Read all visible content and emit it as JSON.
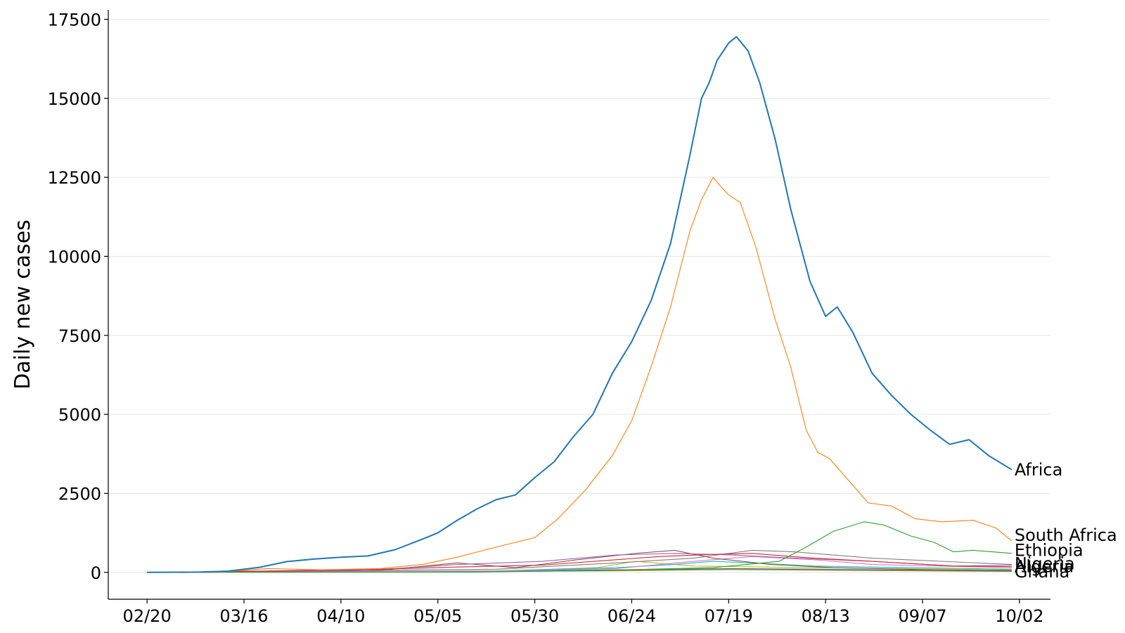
{
  "chart_data": {
    "type": "line",
    "title": "",
    "xlabel": "",
    "ylabel": "Daily new cases",
    "ylim": [
      -850,
      17800
    ],
    "yticks": [
      0,
      2500,
      5000,
      7500,
      10000,
      12500,
      15000,
      17500
    ],
    "ytick_labels": [
      "0",
      "2500",
      "5000",
      "7500",
      "10000",
      "12500",
      "15000",
      "17500"
    ],
    "xlim": [
      "2020-02-10",
      "2020-10-10"
    ],
    "xticks": [
      "2020-02-20",
      "2020-03-16",
      "2020-04-10",
      "2020-05-05",
      "2020-05-30",
      "2020-06-24",
      "2020-07-19",
      "2020-08-13",
      "2020-09-07",
      "2020-10-02"
    ],
    "xtick_labels": [
      "02/20",
      "03/16",
      "04/10",
      "05/05",
      "05/30",
      "06/24",
      "07/19",
      "08/13",
      "09/07",
      "10/02"
    ],
    "grid": "horizontal",
    "legend": "none",
    "series": [
      {
        "name": "Africa",
        "color": "#1f77b4",
        "points": [
          [
            "2020-02-20",
            0
          ],
          [
            "2020-03-05",
            10
          ],
          [
            "2020-03-12",
            40
          ],
          [
            "2020-03-20",
            160
          ],
          [
            "2020-03-27",
            340
          ],
          [
            "2020-04-03",
            420
          ],
          [
            "2020-04-10",
            480
          ],
          [
            "2020-04-17",
            520
          ],
          [
            "2020-04-24",
            720
          ],
          [
            "2020-05-01",
            1050
          ],
          [
            "2020-05-05",
            1250
          ],
          [
            "2020-05-10",
            1650
          ],
          [
            "2020-05-15",
            2000
          ],
          [
            "2020-05-20",
            2300
          ],
          [
            "2020-05-25",
            2450
          ],
          [
            "2020-05-30",
            3000
          ],
          [
            "2020-06-04",
            3500
          ],
          [
            "2020-06-09",
            4300
          ],
          [
            "2020-06-14",
            5000
          ],
          [
            "2020-06-19",
            6300
          ],
          [
            "2020-06-24",
            7300
          ],
          [
            "2020-06-29",
            8600
          ],
          [
            "2020-07-04",
            10400
          ],
          [
            "2020-07-09",
            13200
          ],
          [
            "2020-07-12",
            15000
          ],
          [
            "2020-07-14",
            15500
          ],
          [
            "2020-07-16",
            16200
          ],
          [
            "2020-07-19",
            16750
          ],
          [
            "2020-07-21",
            16950
          ],
          [
            "2020-07-24",
            16500
          ],
          [
            "2020-07-27",
            15500
          ],
          [
            "2020-07-31",
            13700
          ],
          [
            "2020-08-04",
            11500
          ],
          [
            "2020-08-09",
            9200
          ],
          [
            "2020-08-13",
            8100
          ],
          [
            "2020-08-16",
            8400
          ],
          [
            "2020-08-20",
            7600
          ],
          [
            "2020-08-25",
            6300
          ],
          [
            "2020-08-30",
            5600
          ],
          [
            "2020-09-04",
            5000
          ],
          [
            "2020-09-09",
            4500
          ],
          [
            "2020-09-14",
            4050
          ],
          [
            "2020-09-19",
            4200
          ],
          [
            "2020-09-24",
            3700
          ],
          [
            "2020-09-30",
            3250
          ]
        ]
      },
      {
        "name": "South Africa",
        "color": "#ff7f0e",
        "points": [
          [
            "2020-02-20",
            0
          ],
          [
            "2020-03-10",
            10
          ],
          [
            "2020-03-22",
            120
          ],
          [
            "2020-04-05",
            80
          ],
          [
            "2020-04-20",
            120
          ],
          [
            "2020-05-01",
            250
          ],
          [
            "2020-05-10",
            480
          ],
          [
            "2020-05-20",
            800
          ],
          [
            "2020-05-30",
            1100
          ],
          [
            "2020-06-05",
            1700
          ],
          [
            "2020-06-12",
            2600
          ],
          [
            "2020-06-19",
            3700
          ],
          [
            "2020-06-24",
            4800
          ],
          [
            "2020-06-29",
            6500
          ],
          [
            "2020-07-04",
            8400
          ],
          [
            "2020-07-09",
            10800
          ],
          [
            "2020-07-12",
            11800
          ],
          [
            "2020-07-15",
            12500
          ],
          [
            "2020-07-17",
            12200
          ],
          [
            "2020-07-19",
            11950
          ],
          [
            "2020-07-22",
            11700
          ],
          [
            "2020-07-26",
            10300
          ],
          [
            "2020-07-31",
            8000
          ],
          [
            "2020-08-04",
            6500
          ],
          [
            "2020-08-08",
            4500
          ],
          [
            "2020-08-11",
            3800
          ],
          [
            "2020-08-14",
            3600
          ],
          [
            "2020-08-19",
            2900
          ],
          [
            "2020-08-24",
            2200
          ],
          [
            "2020-08-30",
            2100
          ],
          [
            "2020-09-05",
            1700
          ],
          [
            "2020-09-12",
            1600
          ],
          [
            "2020-09-20",
            1650
          ],
          [
            "2020-09-26",
            1400
          ],
          [
            "2020-09-30",
            1000
          ]
        ]
      },
      {
        "name": "Ethiopia",
        "color": "#2ca02c",
        "points": [
          [
            "2020-02-20",
            0
          ],
          [
            "2020-05-15",
            10
          ],
          [
            "2020-06-15",
            60
          ],
          [
            "2020-07-15",
            150
          ],
          [
            "2020-08-01",
            350
          ],
          [
            "2020-08-08",
            800
          ],
          [
            "2020-08-15",
            1300
          ],
          [
            "2020-08-23",
            1600
          ],
          [
            "2020-08-28",
            1500
          ],
          [
            "2020-09-04",
            1150
          ],
          [
            "2020-09-10",
            950
          ],
          [
            "2020-09-15",
            650
          ],
          [
            "2020-09-20",
            700
          ],
          [
            "2020-09-25",
            650
          ],
          [
            "2020-09-30",
            600
          ]
        ]
      },
      {
        "name": "Algeria",
        "color": "#d62728",
        "points": [
          [
            "2020-02-20",
            0
          ],
          [
            "2020-03-25",
            50
          ],
          [
            "2020-04-20",
            100
          ],
          [
            "2020-05-10",
            170
          ],
          [
            "2020-06-01",
            230
          ],
          [
            "2020-06-20",
            400
          ],
          [
            "2020-07-01",
            500
          ],
          [
            "2020-07-15",
            570
          ],
          [
            "2020-07-25",
            600
          ],
          [
            "2020-08-10",
            450
          ],
          [
            "2020-08-25",
            350
          ],
          [
            "2020-09-15",
            200
          ],
          [
            "2020-09-30",
            180
          ]
        ]
      },
      {
        "name": "Nigeria",
        "color": "#9467bd",
        "points": [
          [
            "2020-02-20",
            0
          ],
          [
            "2020-04-15",
            50
          ],
          [
            "2020-05-10",
            250
          ],
          [
            "2020-06-01",
            350
          ],
          [
            "2020-06-20",
            550
          ],
          [
            "2020-07-05",
            600
          ],
          [
            "2020-07-20",
            550
          ],
          [
            "2020-08-05",
            450
          ],
          [
            "2020-08-25",
            350
          ],
          [
            "2020-09-15",
            200
          ],
          [
            "2020-09-30",
            230
          ]
        ]
      },
      {
        "name": "Ghana",
        "color": "#8c564b",
        "points": [
          [
            "2020-02-20",
            0
          ],
          [
            "2020-04-20",
            60
          ],
          [
            "2020-05-10",
            300
          ],
          [
            "2020-05-25",
            150
          ],
          [
            "2020-06-10",
            400
          ],
          [
            "2020-06-25",
            600
          ],
          [
            "2020-07-05",
            700
          ],
          [
            "2020-07-15",
            450
          ],
          [
            "2020-07-30",
            250
          ],
          [
            "2020-08-15",
            150
          ],
          [
            "2020-09-10",
            80
          ],
          [
            "2020-09-30",
            60
          ]
        ]
      },
      {
        "name": "",
        "color": "#7f7f7f",
        "points": [
          [
            "2020-02-20",
            0
          ],
          [
            "2020-05-20",
            100
          ],
          [
            "2020-06-20",
            300
          ],
          [
            "2020-07-10",
            450
          ],
          [
            "2020-07-25",
            700
          ],
          [
            "2020-08-05",
            650
          ],
          [
            "2020-08-25",
            450
          ],
          [
            "2020-09-30",
            250
          ]
        ]
      },
      {
        "name": "",
        "color": "#e377c2",
        "points": [
          [
            "2020-02-20",
            0
          ],
          [
            "2020-05-20",
            40
          ],
          [
            "2020-06-20",
            120
          ],
          [
            "2020-07-10",
            350
          ],
          [
            "2020-07-25",
            500
          ],
          [
            "2020-08-10",
            400
          ],
          [
            "2020-08-25",
            250
          ],
          [
            "2020-09-30",
            150
          ]
        ]
      },
      {
        "name": "",
        "color": "#17becf",
        "points": [
          [
            "2020-02-20",
            0
          ],
          [
            "2020-05-20",
            50
          ],
          [
            "2020-06-20",
            150
          ],
          [
            "2020-07-05",
            250
          ],
          [
            "2020-07-15",
            350
          ],
          [
            "2020-07-25",
            300
          ],
          [
            "2020-08-10",
            200
          ],
          [
            "2020-09-30",
            100
          ]
        ]
      },
      {
        "name": "",
        "color": "#bcbd22",
        "points": [
          [
            "2020-02-20",
            0
          ],
          [
            "2020-05-20",
            40
          ],
          [
            "2020-06-15",
            150
          ],
          [
            "2020-06-25",
            350
          ],
          [
            "2020-07-10",
            200
          ],
          [
            "2020-08-10",
            150
          ],
          [
            "2020-09-30",
            80
          ]
        ]
      },
      {
        "name": "",
        "color": "#1f77b4",
        "points": [
          [
            "2020-02-20",
            0
          ],
          [
            "2020-05-10",
            30
          ],
          [
            "2020-06-20",
            80
          ],
          [
            "2020-07-20",
            120
          ],
          [
            "2020-08-20",
            90
          ],
          [
            "2020-09-30",
            50
          ]
        ]
      },
      {
        "name": "",
        "color": "#ff7f0e",
        "points": [
          [
            "2020-02-20",
            0
          ],
          [
            "2020-05-10",
            20
          ],
          [
            "2020-06-20",
            60
          ],
          [
            "2020-07-20",
            100
          ],
          [
            "2020-08-20",
            70
          ],
          [
            "2020-09-30",
            40
          ]
        ]
      },
      {
        "name": "",
        "color": "#2ca02c",
        "points": [
          [
            "2020-02-20",
            0
          ],
          [
            "2020-05-10",
            30
          ],
          [
            "2020-06-20",
            50
          ],
          [
            "2020-07-20",
            90
          ],
          [
            "2020-08-20",
            60
          ],
          [
            "2020-09-30",
            30
          ]
        ]
      }
    ]
  }
}
